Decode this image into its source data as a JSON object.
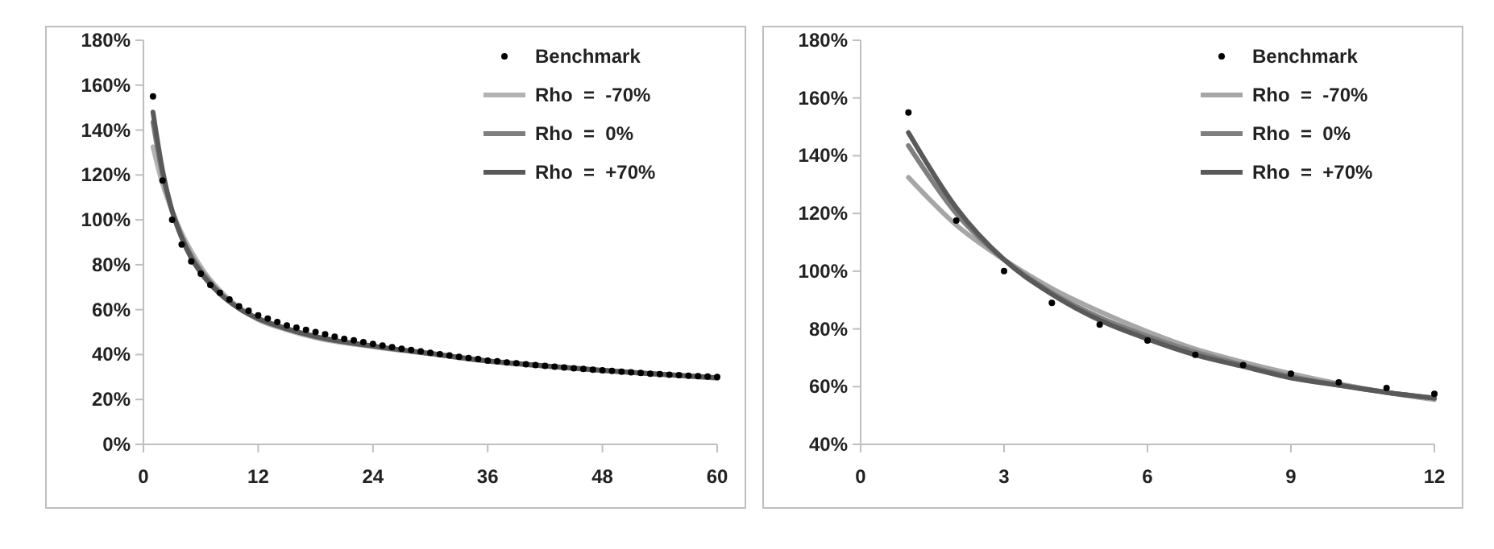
{
  "chart_data": [
    {
      "type": "line",
      "xlim": [
        0,
        60
      ],
      "xticks": [
        0,
        12,
        24,
        36,
        48,
        60
      ],
      "ylim": [
        0,
        180
      ],
      "yticks": [
        {
          "value": 0,
          "label": "0%"
        },
        {
          "value": 20,
          "label": "20%"
        },
        {
          "value": 40,
          "label": "40%"
        },
        {
          "value": 60,
          "label": "60%"
        },
        {
          "value": 80,
          "label": "80%"
        },
        {
          "value": 100,
          "label": "100%"
        },
        {
          "value": 120,
          "label": "120%"
        },
        {
          "value": 140,
          "label": "140%"
        },
        {
          "value": 160,
          "label": "160%"
        },
        {
          "value": 180,
          "label": "180%"
        }
      ],
      "grid": false,
      "legend": "top right",
      "series": [
        {
          "name": "Benchmark",
          "type": "scatter",
          "marker": "circle",
          "color": "#000000",
          "x": [
            1,
            2,
            3,
            4,
            5,
            6,
            7,
            8,
            9,
            10,
            11,
            12,
            13,
            14,
            15,
            16,
            17,
            18,
            19,
            20,
            21,
            22,
            23,
            24,
            25,
            26,
            27,
            28,
            29,
            30,
            31,
            32,
            33,
            34,
            35,
            36,
            37,
            38,
            39,
            40,
            41,
            42,
            43,
            44,
            45,
            46,
            47,
            48,
            49,
            50,
            51,
            52,
            53,
            54,
            55,
            56,
            57,
            58,
            59,
            60
          ],
          "values": [
            155,
            117.5,
            100,
            89,
            81.5,
            76,
            71,
            67.5,
            64.5,
            61.5,
            59.5,
            57.5,
            56,
            54.5,
            53,
            52,
            51,
            50,
            49,
            48,
            47,
            46.3,
            45.5,
            44.7,
            44,
            43.3,
            42.6,
            42,
            41.4,
            40.8,
            40.2,
            39.6,
            39,
            38.5,
            38,
            37.3,
            37,
            36.5,
            36.1,
            35.7,
            35.3,
            35,
            34.6,
            34.2,
            33.9,
            33.6,
            33.3,
            33,
            32.7,
            32.4,
            32.1,
            31.8,
            31.5,
            31.3,
            31,
            30.8,
            30.6,
            30.4,
            30.2,
            30
          ]
        },
        {
          "name": "Rho  =  -70%",
          "color": "#b3b3b3",
          "x": [
            1,
            2,
            3,
            4,
            5,
            6,
            8,
            10,
            12,
            15,
            18,
            24,
            30,
            36,
            42,
            48,
            54,
            60
          ],
          "values": [
            132.5,
            116,
            104,
            94,
            86,
            79,
            68.5,
            61,
            55.5,
            51,
            47.5,
            43.5,
            40.3,
            37,
            34.8,
            32.8,
            31.2,
            29.5
          ]
        },
        {
          "name": "Rho  =  0%",
          "color": "#7f7f7f",
          "x": [
            1,
            2,
            3,
            4,
            5,
            6,
            8,
            10,
            12,
            15,
            18,
            24,
            30,
            36,
            42,
            48,
            54,
            60
          ],
          "values": [
            143.5,
            120,
            104,
            92.5,
            84,
            77.5,
            67.5,
            60.5,
            56,
            51.5,
            48,
            43.7,
            40.4,
            37.1,
            34.9,
            32.9,
            31.2,
            29.6
          ]
        },
        {
          "name": "Rho  =  +70%",
          "color": "#595959",
          "x": [
            1,
            2,
            3,
            4,
            5,
            6,
            8,
            10,
            12,
            15,
            18,
            24,
            30,
            36,
            42,
            48,
            54,
            60
          ],
          "values": [
            148,
            122,
            104,
            92,
            83,
            76.5,
            67,
            60.5,
            56,
            51.5,
            48,
            43.8,
            40.5,
            37.2,
            35,
            33,
            31.3,
            29.7
          ]
        }
      ]
    },
    {
      "type": "line",
      "xlim": [
        0,
        12
      ],
      "xticks": [
        0,
        3,
        6,
        9,
        12
      ],
      "ylim": [
        40,
        180
      ],
      "yticks": [
        {
          "value": 40,
          "label": "40%"
        },
        {
          "value": 60,
          "label": "60%"
        },
        {
          "value": 80,
          "label": "80%"
        },
        {
          "value": 100,
          "label": "100%"
        },
        {
          "value": 120,
          "label": "120%"
        },
        {
          "value": 140,
          "label": "140%"
        },
        {
          "value": 160,
          "label": "160%"
        },
        {
          "value": 180,
          "label": "180%"
        }
      ],
      "grid": false,
      "legend": "top right",
      "series": [
        {
          "name": "Benchmark",
          "type": "scatter",
          "marker": "circle",
          "color": "#000000",
          "x": [
            1,
            2,
            3,
            4,
            5,
            6,
            7,
            8,
            9,
            10,
            11,
            12
          ],
          "values": [
            155,
            117.5,
            100,
            89,
            81.5,
            76,
            71,
            67.5,
            64.5,
            61.5,
            59.5,
            57.5
          ]
        },
        {
          "name": "Rho  =  -70%",
          "color": "#a6a6a6",
          "x": [
            1,
            2,
            3,
            4,
            5,
            6,
            7,
            8,
            9,
            10,
            11,
            12
          ],
          "values": [
            132.5,
            116,
            104,
            94,
            86,
            79,
            73,
            68.5,
            64.5,
            61,
            58,
            55.5
          ]
        },
        {
          "name": "Rho  =  0%",
          "color": "#7f7f7f",
          "x": [
            1,
            2,
            3,
            4,
            5,
            6,
            7,
            8,
            9,
            10,
            11,
            12
          ],
          "values": [
            143.5,
            120,
            104,
            92.5,
            84,
            77.5,
            72,
            67.5,
            63.5,
            60.5,
            58,
            56
          ]
        },
        {
          "name": "Rho  =  +70%",
          "color": "#595959",
          "x": [
            1,
            2,
            3,
            4,
            5,
            6,
            7,
            8,
            9,
            10,
            11,
            12
          ],
          "values": [
            148,
            122,
            104,
            92,
            83,
            76.5,
            71,
            67,
            63,
            60.5,
            58,
            56
          ]
        }
      ]
    }
  ]
}
